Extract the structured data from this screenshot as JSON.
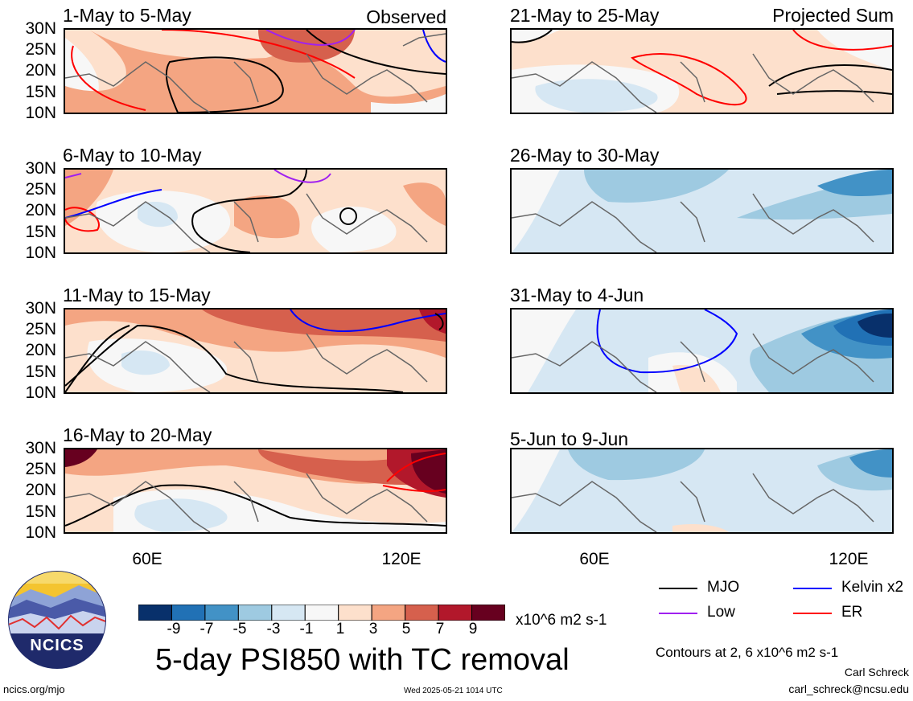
{
  "figure": {
    "title": "5-day PSI850 with TC removal",
    "units": "x10^6 m2 s-1",
    "contours_note": "Contours at 2, 6 x10^6 m2 s-1",
    "author": "Carl Schreck",
    "email": "carl_schreck@ncsu.edu",
    "website": "ncics.org/mjo",
    "timestamp": "Wed 2025-05-21 1014 UTC",
    "logo_text": "NCICS",
    "observed_label": "Observed",
    "projected_label": "Projected Sum"
  },
  "axes": {
    "lat_labels": [
      "30N",
      "25N",
      "20N",
      "15N",
      "10N"
    ],
    "lon_labels": [
      "60E",
      "120E"
    ]
  },
  "panels": [
    {
      "title": "1-May to 5-May"
    },
    {
      "title": "6-May to 10-May"
    },
    {
      "title": "11-May to 15-May"
    },
    {
      "title": "16-May to 20-May"
    },
    {
      "title": "21-May to 25-May"
    },
    {
      "title": "26-May to 30-May"
    },
    {
      "title": "31-May to 4-Jun"
    },
    {
      "title": "5-Jun to 9-Jun"
    }
  ],
  "colorbar": {
    "ticks": [
      "-9",
      "-7",
      "-5",
      "-3",
      "-1",
      "1",
      "3",
      "5",
      "7",
      "9"
    ],
    "colors": [
      "#08306b",
      "#2171b5",
      "#4292c6",
      "#9ecae1",
      "#d6e7f3",
      "#f7f7f7",
      "#fde0cc",
      "#f4a582",
      "#d6604d",
      "#b2182b",
      "#67001f"
    ]
  },
  "legend": [
    {
      "label": "MJO",
      "color": "#000000"
    },
    {
      "label": "Kelvin x2",
      "color": "#0000ff"
    },
    {
      "label": "Low",
      "color": "#a020f0"
    },
    {
      "label": "ER",
      "color": "#ff0000"
    }
  ]
}
